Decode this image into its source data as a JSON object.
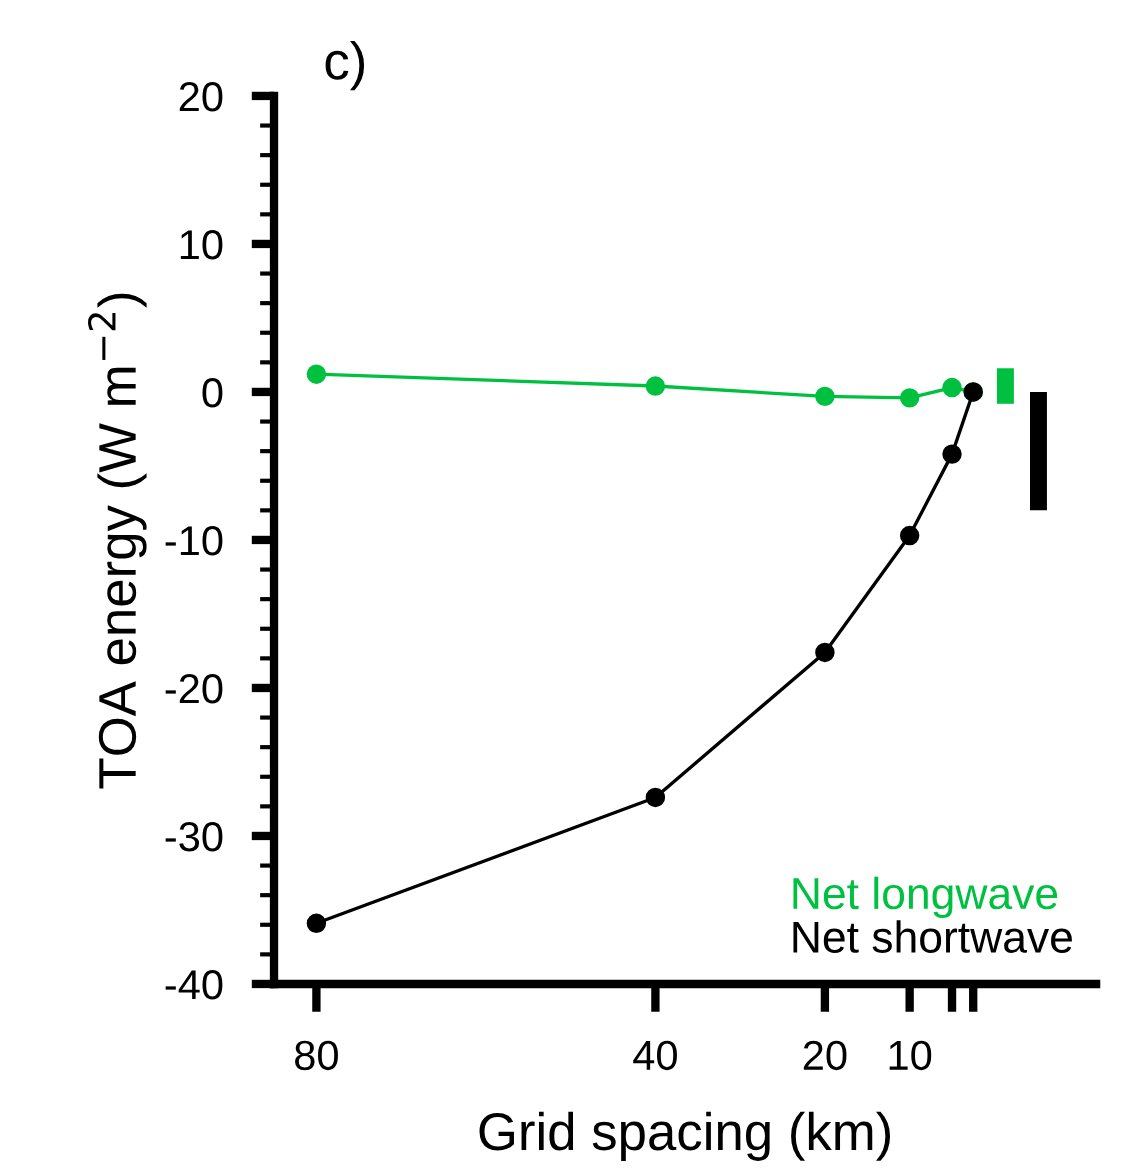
{
  "chart_data": {
    "type": "line",
    "title": "c)",
    "xlabel": "Grid spacing (km)",
    "ylabel": "TOA energy (W m$^{−2}$)",
    "xlim": [
      85,
      -12
    ],
    "xticks": [
      80,
      40,
      20,
      10,
      {
        "value": 5,
        "label": null
      },
      {
        "value": 2.5,
        "label": null
      }
    ],
    "ylim": [
      -40,
      20
    ],
    "yticks": [
      -40,
      -30,
      -20,
      -10,
      0,
      10,
      20
    ],
    "grid": false,
    "legend": "bottom right",
    "marker": "circle",
    "line_style": "solid",
    "x": [
      80,
      40,
      20,
      10,
      5,
      2.5
    ],
    "series": [
      {
        "name": "Net longwave",
        "color": "#00c040",
        "values": [
          1.2,
          0.4,
          -0.3,
          -0.4,
          0.3,
          0
        ]
      },
      {
        "name": "Net shortwave",
        "color": "#000000",
        "values": [
          -35.9,
          -27.4,
          -17.6,
          -9.7,
          -4.2,
          0
        ]
      },
      {
        "type": "bar",
        "color": "#00c040",
        "x": [
          -1.3
        ],
        "base": [
          -0.8
        ],
        "values": [
          2.4
        ]
      },
      {
        "type": "bar",
        "color": "#000000",
        "x": [
          -5.2
        ],
        "base": [
          -8
        ],
        "values": [
          8
        ]
      }
    ]
  }
}
